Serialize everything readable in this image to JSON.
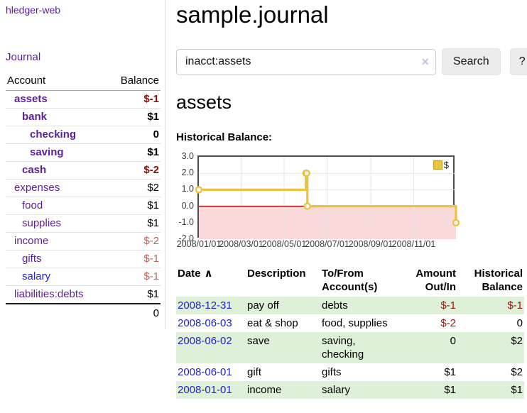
{
  "colors": {
    "link_purple": "#5c1e99",
    "link_blue": "#2222cc",
    "negative_strong": "#7e1208",
    "negative_dim": "#b4655c",
    "negative_table": "#8d1a12",
    "row_stripe_green": "#dff0d8",
    "series_gold": "#edc240"
  },
  "sidebar": {
    "brand": "hledger-web",
    "journal_link": "Journal",
    "accounts": {
      "headers": [
        "Account",
        "Balance"
      ],
      "rows": [
        {
          "name": "assets",
          "indent": 0,
          "bold": true,
          "blue": false,
          "balance": "$-1",
          "tone": "negs"
        },
        {
          "name": "bank",
          "indent": 1,
          "bold": true,
          "blue": false,
          "balance": "$1",
          "tone": "pos"
        },
        {
          "name": "checking",
          "indent": 2,
          "bold": true,
          "blue": false,
          "balance": "0",
          "tone": "pos"
        },
        {
          "name": "saving",
          "indent": 2,
          "bold": true,
          "blue": false,
          "balance": "$1",
          "tone": "pos"
        },
        {
          "name": "cash",
          "indent": 1,
          "bold": true,
          "blue": false,
          "balance": "$-2",
          "tone": "negs"
        },
        {
          "name": "expenses",
          "indent": 0,
          "bold": false,
          "blue": false,
          "balance": "$2",
          "tone": "pos"
        },
        {
          "name": "food",
          "indent": 1,
          "bold": false,
          "blue": false,
          "balance": "$1",
          "tone": "pos"
        },
        {
          "name": "supplies",
          "indent": 1,
          "bold": false,
          "blue": false,
          "balance": "$1",
          "tone": "pos"
        },
        {
          "name": "income",
          "indent": 0,
          "bold": false,
          "blue": false,
          "balance": "$-2",
          "tone": "negd"
        },
        {
          "name": "gifts",
          "indent": 1,
          "bold": false,
          "blue": false,
          "balance": "$-1",
          "tone": "negd"
        },
        {
          "name": "salary",
          "indent": 1,
          "bold": false,
          "blue": true,
          "balance": "$-1",
          "tone": "negd"
        },
        {
          "name": "liabilities:debts",
          "indent": 0,
          "bold": false,
          "blue": false,
          "balance": "$1",
          "tone": "pos"
        }
      ],
      "total": "0"
    }
  },
  "header": {
    "title": "sample.journal"
  },
  "search": {
    "value": "inacct:assets",
    "clear_icon": "×",
    "button_label": "Search",
    "help_label": "?"
  },
  "account_page": {
    "title": "assets",
    "chart_heading": "Historical Balance:"
  },
  "chart_data": {
    "type": "line",
    "title": "Historical Balance",
    "step": true,
    "series": [
      {
        "name": "$",
        "color": "#edc240",
        "points": [
          [
            "2008-01-01",
            1
          ],
          [
            "2008-06-01",
            2
          ],
          [
            "2008-06-02",
            2
          ],
          [
            "2008-06-03",
            0
          ],
          [
            "2008-12-31",
            -1
          ]
        ]
      }
    ],
    "x_range": [
      "2008-01-01",
      "2008-12-31"
    ],
    "x_ticks": [
      "2008/01/01",
      "2008/03/01",
      "2008/05/01",
      "2008/07/01",
      "2008/09/01",
      "2008/11/01"
    ],
    "y_ticks": [
      3.0,
      2.0,
      1.0,
      0.0,
      -1.0,
      -2.0
    ],
    "ylim": [
      -2.0,
      3.0
    ],
    "legend_position": "top-right",
    "grid": true,
    "style": {
      "border": "#4d4d4d",
      "gridline": "#e4e4e4",
      "zero_line": "#8b0000",
      "negative_region": "#f9d9d9",
      "marker_fill": "#ffffff"
    }
  },
  "register": {
    "headers": {
      "date": {
        "label": "Date",
        "sort_icon": "∧"
      },
      "description": "Description",
      "accounts": "To/From Account(s)",
      "amount": "Amount Out/In",
      "balance": "Historical Balance"
    },
    "rows": [
      {
        "date": "2008-12-31",
        "description": "pay off",
        "accounts": "debts",
        "amount": "$-1",
        "balance": "$-1"
      },
      {
        "date": "2008-06-03",
        "description": "eat & shop",
        "accounts": "food, supplies",
        "amount": "$-2",
        "balance": "0"
      },
      {
        "date": "2008-06-02",
        "description": "save",
        "accounts": "saving, checking",
        "amount": "0",
        "balance": "$2"
      },
      {
        "date": "2008-06-01",
        "description": "gift",
        "accounts": "gifts",
        "amount": "$1",
        "balance": "$2"
      },
      {
        "date": "2008-01-01",
        "description": "income",
        "accounts": "salary",
        "amount": "$1",
        "balance": "$1"
      }
    ]
  }
}
